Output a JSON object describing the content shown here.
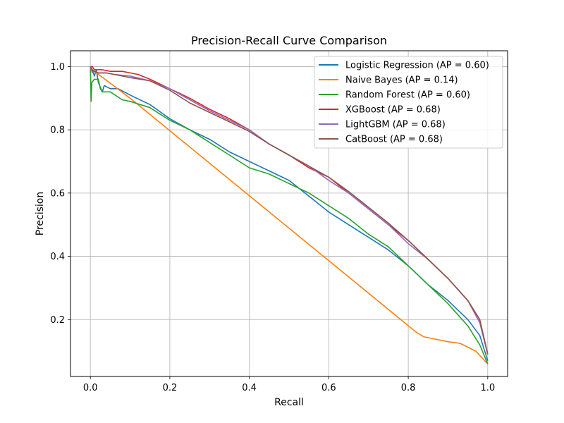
{
  "chart_data": {
    "type": "line",
    "title": "Precision-Recall Curve Comparison",
    "xlabel": "Recall",
    "ylabel": "Precision",
    "xlim": [
      -0.05,
      1.05
    ],
    "ylim": [
      0.02,
      1.05
    ],
    "xticks": [
      0.0,
      0.2,
      0.4,
      0.6,
      0.8,
      1.0
    ],
    "yticks": [
      0.2,
      0.4,
      0.6,
      0.8,
      1.0
    ],
    "xtick_labels": [
      "0.0",
      "0.2",
      "0.4",
      "0.6",
      "0.8",
      "1.0"
    ],
    "ytick_labels": [
      "0.2",
      "0.4",
      "0.6",
      "0.8",
      "1.0"
    ],
    "grid": true,
    "legend_position": "top-right",
    "series": [
      {
        "name": "Logistic Regression (AP = 0.60)",
        "color": "#1f77b4",
        "x": [
          0.0,
          0.005,
          0.01,
          0.015,
          0.02,
          0.03,
          0.035,
          0.05,
          0.07,
          0.1,
          0.15,
          0.2,
          0.25,
          0.3,
          0.35,
          0.4,
          0.45,
          0.5,
          0.55,
          0.6,
          0.65,
          0.7,
          0.75,
          0.8,
          0.85,
          0.9,
          0.95,
          0.98,
          1.0
        ],
        "y": [
          1.0,
          0.99,
          0.97,
          0.99,
          0.95,
          0.92,
          0.94,
          0.93,
          0.93,
          0.91,
          0.88,
          0.835,
          0.8,
          0.77,
          0.73,
          0.7,
          0.67,
          0.64,
          0.59,
          0.54,
          0.5,
          0.46,
          0.42,
          0.37,
          0.31,
          0.26,
          0.2,
          0.15,
          0.07
        ]
      },
      {
        "name": "Naive Bayes (AP = 0.14)",
        "color": "#ff7f0e",
        "x": [
          0.0,
          0.005,
          0.1,
          0.82,
          0.84,
          0.9,
          0.93,
          0.97,
          1.0
        ],
        "y": [
          1.0,
          0.99,
          0.9,
          0.16,
          0.145,
          0.13,
          0.125,
          0.1,
          0.06
        ]
      },
      {
        "name": "Random Forest (AP = 0.60)",
        "color": "#2ca02c",
        "x": [
          0.0,
          0.002,
          0.004,
          0.01,
          0.02,
          0.025,
          0.03,
          0.05,
          0.08,
          0.1,
          0.15,
          0.2,
          0.25,
          0.3,
          0.35,
          0.4,
          0.45,
          0.5,
          0.55,
          0.6,
          0.65,
          0.7,
          0.75,
          0.8,
          0.85,
          0.9,
          0.95,
          0.98,
          1.0
        ],
        "y": [
          1.0,
          0.89,
          0.95,
          0.96,
          0.96,
          0.93,
          0.92,
          0.92,
          0.895,
          0.89,
          0.87,
          0.83,
          0.8,
          0.76,
          0.72,
          0.68,
          0.66,
          0.63,
          0.6,
          0.56,
          0.52,
          0.47,
          0.43,
          0.37,
          0.31,
          0.25,
          0.18,
          0.12,
          0.06
        ]
      },
      {
        "name": "XGBoost (AP = 0.68)",
        "color": "#d62728",
        "x": [
          0.0,
          0.005,
          0.01,
          0.02,
          0.03,
          0.05,
          0.08,
          0.1,
          0.12,
          0.15,
          0.2,
          0.25,
          0.3,
          0.35,
          0.4,
          0.45,
          0.5,
          0.55,
          0.6,
          0.65,
          0.7,
          0.75,
          0.8,
          0.85,
          0.9,
          0.95,
          0.98,
          1.0
        ],
        "y": [
          1.0,
          1.0,
          0.99,
          0.99,
          0.99,
          0.985,
          0.985,
          0.98,
          0.975,
          0.96,
          0.93,
          0.9,
          0.865,
          0.835,
          0.8,
          0.755,
          0.72,
          0.68,
          0.65,
          0.6,
          0.55,
          0.5,
          0.45,
          0.39,
          0.33,
          0.26,
          0.2,
          0.09
        ]
      },
      {
        "name": "LightGBM (AP = 0.68)",
        "color": "#9467bd",
        "x": [
          0.0,
          0.005,
          0.01,
          0.02,
          0.04,
          0.06,
          0.1,
          0.15,
          0.2,
          0.25,
          0.3,
          0.35,
          0.4,
          0.45,
          0.5,
          0.55,
          0.6,
          0.65,
          0.7,
          0.75,
          0.8,
          0.85,
          0.9,
          0.95,
          0.98,
          1.0
        ],
        "y": [
          1.0,
          0.98,
          0.985,
          0.98,
          0.98,
          0.975,
          0.97,
          0.955,
          0.93,
          0.895,
          0.86,
          0.83,
          0.8,
          0.755,
          0.72,
          0.685,
          0.64,
          0.6,
          0.55,
          0.5,
          0.44,
          0.39,
          0.33,
          0.26,
          0.19,
          0.09
        ]
      },
      {
        "name": "CatBoost (AP = 0.68)",
        "color": "#8c564b",
        "x": [
          0.0,
          0.005,
          0.01,
          0.02,
          0.04,
          0.06,
          0.1,
          0.15,
          0.2,
          0.25,
          0.3,
          0.35,
          0.4,
          0.45,
          0.5,
          0.55,
          0.6,
          0.65,
          0.7,
          0.75,
          0.8,
          0.85,
          0.9,
          0.95,
          0.98,
          1.0
        ],
        "y": [
          1.0,
          0.99,
          0.985,
          0.98,
          0.98,
          0.975,
          0.965,
          0.955,
          0.925,
          0.885,
          0.855,
          0.825,
          0.795,
          0.755,
          0.72,
          0.685,
          0.65,
          0.605,
          0.555,
          0.505,
          0.45,
          0.39,
          0.33,
          0.26,
          0.2,
          0.09
        ]
      }
    ]
  }
}
